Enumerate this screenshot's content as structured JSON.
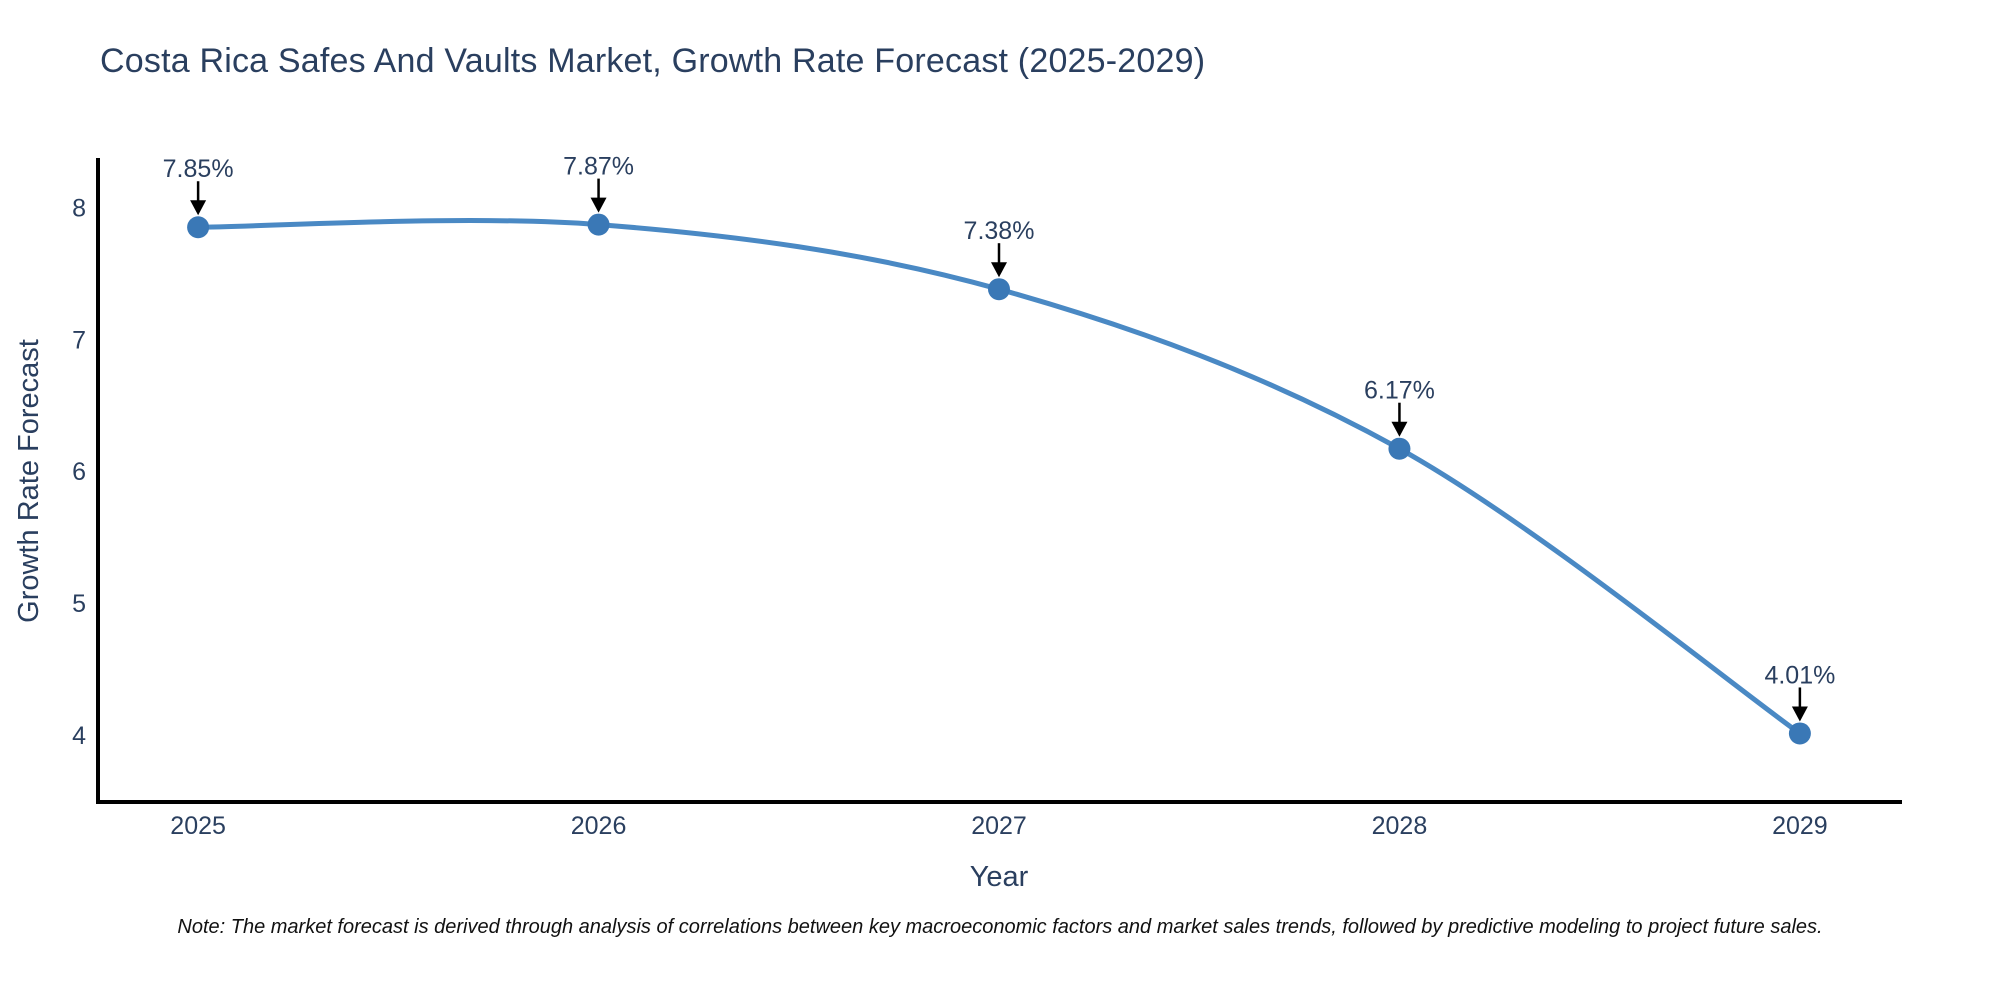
{
  "page": {
    "title": "Costa Rica Safes And Vaults Market, Growth Rate Forecast (2025-2029)",
    "footnote": "Note: The market forecast is derived through analysis of correlations between key macroeconomic factors and market sales trends, followed by predictive modeling to project future sales."
  },
  "chart_data": {
    "type": "line",
    "title": "Costa Rica Safes And Vaults Market, Growth Rate Forecast (2025-2029)",
    "xlabel": "Year",
    "ylabel": "Growth Rate Forecast",
    "x": [
      2025,
      2026,
      2027,
      2028,
      2029
    ],
    "x_tick_labels": [
      "2025",
      "2026",
      "2027",
      "2028",
      "2029"
    ],
    "y_ticks": [
      4,
      5,
      6,
      7,
      8
    ],
    "xlim": [
      2024.75,
      2029.25
    ],
    "ylim": [
      3.49,
      8.36
    ],
    "grid": false,
    "legend": "none",
    "line_shape": "spline",
    "series": [
      {
        "name": "Growth Rate Forecast",
        "values": [
          7.85,
          7.87,
          7.38,
          6.17,
          4.01
        ],
        "point_labels": [
          "7.85%",
          "7.87%",
          "7.38%",
          "6.17%",
          "4.01%"
        ]
      }
    ],
    "annotation_style": "value label above each point with black arrow pointing down to marker",
    "colors": {
      "line": "#4a89c4",
      "marker": "#3a78b6",
      "axis_line": "#000000",
      "text": "#2a3f5f",
      "annotation_arrow": "#000000",
      "note_text": "#111111",
      "background": "#ffffff"
    }
  }
}
